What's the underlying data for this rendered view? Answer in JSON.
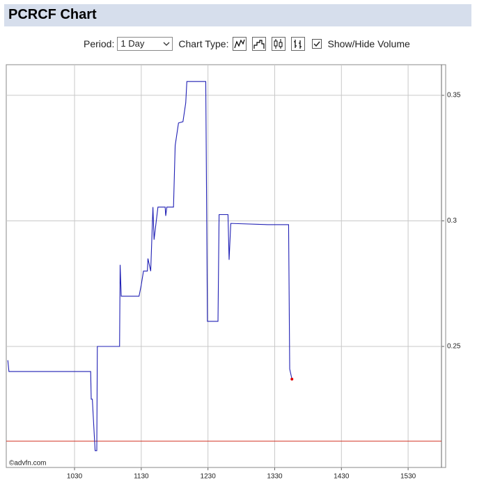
{
  "page": {
    "title": "PCRCF Chart",
    "period_label": "Period:",
    "period_value": "1 Day",
    "chart_type_label": "Chart Type:",
    "volume_label": "Show/Hide Volume"
  },
  "chart_data": {
    "type": "line",
    "source": "©advfn.com",
    "x": [
      570,
      571,
      644.5,
      645,
      646,
      648.5,
      650,
      650.5,
      670.5,
      671,
      672,
      688,
      690,
      692,
      695.5,
      696,
      698.5,
      700.5,
      701.5,
      705,
      711.5,
      712,
      713,
      719,
      720.5,
      723.5,
      727.5,
      730,
      731,
      748,
      749.5,
      759,
      760,
      768,
      769,
      770.5,
      804,
      822.5,
      823.5,
      825.5
    ],
    "series": [
      {
        "name": "PCRCF",
        "color": "#1f1fb4",
        "values": [
          0.2445,
          0.24,
          0.24,
          0.229,
          0.229,
          0.2085,
          0.2085,
          0.25,
          0.25,
          0.2825,
          0.27,
          0.27,
          0.2745,
          0.28,
          0.28,
          0.285,
          0.28,
          0.3055,
          0.2925,
          0.3055,
          0.3055,
          0.302,
          0.3055,
          0.3055,
          0.33,
          0.339,
          0.3395,
          0.347,
          0.3555,
          0.3555,
          0.26,
          0.26,
          0.3025,
          0.3025,
          0.2845,
          0.299,
          0.2985,
          0.2985,
          0.241,
          0.237
        ]
      }
    ],
    "end_marker_color": "#e00000",
    "reference_line": 0.2123,
    "reference_color": "#d03020",
    "xlim": [
      568.6,
      960
    ],
    "ylim": [
      0.2018,
      0.3622
    ],
    "xticks": [
      {
        "value": 630,
        "label": "1030"
      },
      {
        "value": 690,
        "label": "1130"
      },
      {
        "value": 750,
        "label": "1230"
      },
      {
        "value": 810,
        "label": "1330"
      },
      {
        "value": 870,
        "label": "1430"
      },
      {
        "value": 930,
        "label": "1530"
      }
    ],
    "yticks": [
      0.25,
      0.3,
      0.35
    ],
    "grid": true
  }
}
